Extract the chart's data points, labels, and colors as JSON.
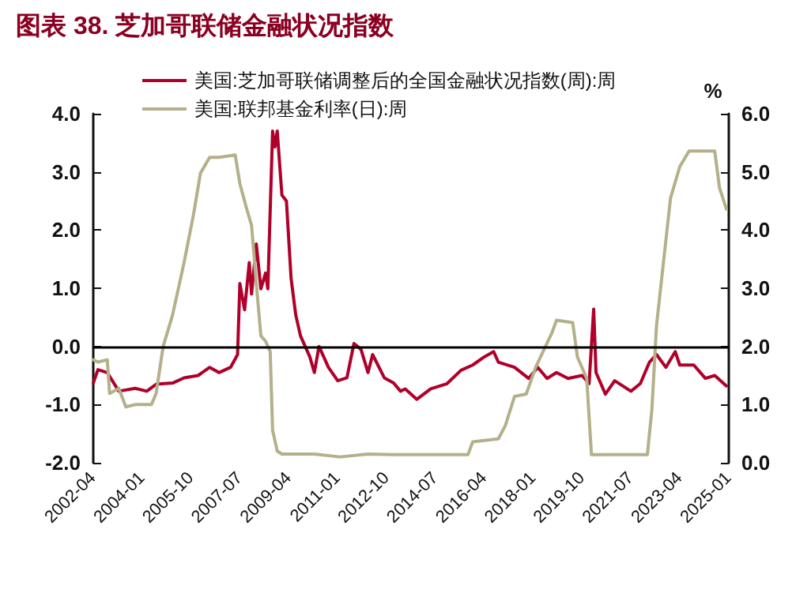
{
  "chart_data": {
    "type": "line",
    "title": "图表 38. 芝加哥联储金融状况指数",
    "y2label": "%",
    "xlim": [
      "2002-04",
      "2025-01"
    ],
    "xticks": [
      "2002-04",
      "2004-01",
      "2005-10",
      "2007-07",
      "2009-04",
      "2011-01",
      "2012-10",
      "2014-07",
      "2016-04",
      "2018-01",
      "2019-10",
      "2021-07",
      "2023-04",
      "2025-01"
    ],
    "ylim": [
      -2,
      4
    ],
    "yticks": [
      {
        "value": -2,
        "label": "-2.0"
      },
      {
        "value": -1,
        "label": "-1.0"
      },
      {
        "value": 0,
        "label": "0.0"
      },
      {
        "value": 1,
        "label": "1.0"
      },
      {
        "value": 2,
        "label": "2.0"
      },
      {
        "value": 3,
        "label": "3.0"
      },
      {
        "value": 4,
        "label": "4.0"
      }
    ],
    "y2lim": [
      0,
      6
    ],
    "y2ticks": [
      {
        "value": 0,
        "label": "0.0"
      },
      {
        "value": 1,
        "label": "1.0"
      },
      {
        "value": 2,
        "label": "2.0"
      },
      {
        "value": 3,
        "label": "3.0"
      },
      {
        "value": 4,
        "label": "4.0"
      },
      {
        "value": 5,
        "label": "5.0"
      },
      {
        "value": 6,
        "label": "6.0"
      }
    ],
    "legend": "top left",
    "ref_lines": [
      {
        "axis": "y",
        "value": 0,
        "color": "#000000"
      }
    ],
    "series": [
      {
        "name": "美国:芝加哥联储调整后的全国金融状况指数(周):周",
        "color": "#b0002a",
        "x": [
          "2002-04",
          "2002-06",
          "2002-10",
          "2003-03",
          "2003-10",
          "2004-03",
          "2004-07",
          "2005-02",
          "2005-07",
          "2006-01",
          "2006-06",
          "2006-10",
          "2007-03",
          "2007-06",
          "2007-07",
          "2007-09",
          "2007-11",
          "2007-12",
          "2008-02",
          "2008-04",
          "2008-06",
          "2008-07",
          "2008-09",
          "2008-10",
          "2008-11",
          "2009-01",
          "2009-03",
          "2009-05",
          "2009-07",
          "2009-09",
          "2010-01",
          "2010-03",
          "2010-05",
          "2010-09",
          "2011-01",
          "2011-05",
          "2011-08",
          "2011-11",
          "2012-02",
          "2012-04",
          "2012-09",
          "2013-01",
          "2013-04",
          "2013-06",
          "2013-11",
          "2014-05",
          "2014-12",
          "2015-06",
          "2015-11",
          "2016-04",
          "2016-08",
          "2016-10",
          "2017-05",
          "2017-11",
          "2018-03",
          "2018-07",
          "2018-11",
          "2019-04",
          "2019-10",
          "2020-01",
          "2020-03",
          "2020-04",
          "2020-08",
          "2020-12",
          "2021-07",
          "2021-11",
          "2022-03",
          "2022-06",
          "2022-10",
          "2023-02",
          "2023-04",
          "2023-10",
          "2024-03",
          "2024-07",
          "2024-12"
        ],
        "values": [
          -0.63,
          -0.4,
          -0.45,
          -0.77,
          -0.72,
          -0.77,
          -0.65,
          -0.63,
          -0.54,
          -0.5,
          -0.36,
          -0.45,
          -0.36,
          -0.14,
          1.08,
          0.63,
          1.44,
          0.9,
          1.76,
          0.99,
          1.26,
          0.99,
          3.7,
          3.43,
          3.7,
          2.6,
          2.5,
          1.17,
          0.54,
          0.18,
          -0.18,
          -0.45,
          0.0,
          -0.36,
          -0.59,
          -0.54,
          0.05,
          -0.05,
          -0.45,
          -0.14,
          -0.54,
          -0.63,
          -0.77,
          -0.73,
          -0.91,
          -0.73,
          -0.64,
          -0.41,
          -0.32,
          -0.18,
          -0.09,
          -0.27,
          -0.36,
          -0.55,
          -0.36,
          -0.55,
          -0.45,
          -0.55,
          -0.5,
          -0.64,
          0.64,
          -0.45,
          -0.82,
          -0.59,
          -0.77,
          -0.64,
          -0.27,
          -0.14,
          -0.36,
          -0.09,
          -0.32,
          -0.32,
          -0.55,
          -0.5,
          -0.68
        ]
      },
      {
        "name": "美国:联邦基金利率(日):周",
        "color": "#b3b08a",
        "axis": "y2",
        "x": [
          "2002-04",
          "2002-06",
          "2002-10",
          "2002-11",
          "2003-03",
          "2003-06",
          "2003-10",
          "2004-05",
          "2004-07",
          "2004-10",
          "2005-02",
          "2005-07",
          "2005-11",
          "2006-02",
          "2006-06",
          "2006-10",
          "2007-05",
          "2007-07",
          "2007-10",
          "2007-12",
          "2008-02",
          "2008-04",
          "2008-06",
          "2008-08",
          "2008-09",
          "2008-11",
          "2009-01",
          "2010-03",
          "2011-02",
          "2012-02",
          "2013-01",
          "2015-09",
          "2015-11",
          "2016-10",
          "2017-01",
          "2017-05",
          "2017-10",
          "2018-02",
          "2018-09",
          "2018-11",
          "2019-06",
          "2019-08",
          "2019-12",
          "2020-02",
          "2022-02",
          "2022-04",
          "2022-06",
          "2022-10",
          "2022-12",
          "2023-04",
          "2023-08",
          "2024-07",
          "2024-09",
          "2024-12"
        ],
        "values": [
          1.77,
          1.73,
          1.77,
          1.19,
          1.28,
          0.96,
          1.0,
          1.0,
          1.19,
          2.0,
          2.54,
          3.44,
          4.26,
          4.98,
          5.25,
          5.25,
          5.29,
          4.8,
          4.35,
          4.08,
          3.08,
          2.18,
          2.09,
          1.91,
          0.56,
          0.2,
          0.15,
          0.15,
          0.1,
          0.15,
          0.14,
          0.14,
          0.36,
          0.41,
          0.64,
          1.14,
          1.18,
          1.64,
          2.23,
          2.45,
          2.41,
          1.82,
          1.45,
          0.14,
          0.14,
          0.91,
          2.36,
          3.82,
          4.55,
          5.09,
          5.36,
          5.36,
          4.73,
          4.36
        ]
      }
    ]
  }
}
